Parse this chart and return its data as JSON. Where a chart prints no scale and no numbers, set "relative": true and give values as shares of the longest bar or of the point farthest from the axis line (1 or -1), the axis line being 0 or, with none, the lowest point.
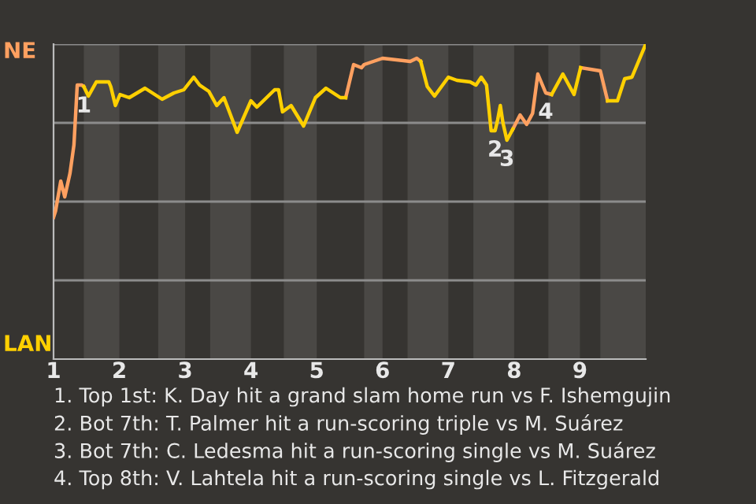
{
  "chart_data": {
    "type": "line",
    "relative": true,
    "xlim": [
      1,
      10
    ],
    "xticks": [
      1,
      2,
      3,
      4,
      5,
      6,
      7,
      8,
      9
    ],
    "grid": "y",
    "series": [
      {
        "color": "#ffa060",
        "x": [
          1.0,
          1.03,
          1.11,
          1.17,
          1.25,
          1.31,
          1.36,
          1.43,
          1.46,
          3.3,
          5.44,
          5.56,
          5.68,
          5.72,
          6.0,
          6.42,
          6.52,
          6.58,
          7.3,
          7.98,
          8.09,
          8.19,
          8.28,
          8.36,
          8.48,
          8.57,
          8.82,
          9.01,
          9.31,
          9.42
        ],
        "values": [
          0.45,
          0.47,
          0.565,
          0.515,
          0.59,
          0.68,
          0.87,
          0.87,
          0.865,
          null,
          0.83,
          0.935,
          0.925,
          0.935,
          0.955,
          0.945,
          0.955,
          0.945,
          null,
          0.73,
          0.775,
          0.745,
          0.78,
          0.905,
          0.845,
          0.84,
          null,
          0.925,
          0.915,
          0.82
        ]
      },
      {
        "color": "#ffd000",
        "x": [
          1.46,
          1.53,
          1.65,
          1.84,
          1.87,
          1.94,
          2.01,
          2.15,
          2.39,
          2.65,
          2.83,
          2.98,
          3.13,
          3.22,
          3.36,
          3.48,
          3.59,
          3.79,
          4.0,
          4.09,
          4.36,
          4.42,
          4.48,
          4.61,
          4.8,
          4.98,
          5.14,
          5.36,
          5.44,
          6.0,
          6.58,
          6.68,
          6.79,
          7.0,
          7.13,
          7.33,
          7.42,
          7.5,
          7.58,
          7.65,
          7.71,
          7.75,
          7.79,
          7.83,
          7.89,
          7.98,
          8.27,
          8.57,
          8.74,
          8.91,
          9.01,
          9.22,
          9.42,
          9.57,
          9.68,
          9.79,
          9.91,
          10.0
        ],
        "values": [
          0.865,
          0.835,
          0.88,
          0.88,
          0.865,
          0.805,
          0.84,
          0.83,
          0.86,
          0.825,
          0.845,
          0.855,
          0.895,
          0.87,
          0.85,
          0.805,
          0.83,
          0.72,
          0.82,
          0.8,
          0.855,
          0.855,
          0.785,
          0.805,
          0.74,
          0.83,
          0.86,
          0.83,
          0.83,
          null,
          0.945,
          0.865,
          0.835,
          0.895,
          0.885,
          0.88,
          0.87,
          0.895,
          0.87,
          0.725,
          0.725,
          0.76,
          0.805,
          0.75,
          0.695,
          0.73,
          null,
          0.84,
          0.905,
          0.84,
          0.925,
          null,
          0.82,
          0.82,
          0.89,
          0.895,
          0.955,
          1.0
        ]
      }
    ],
    "bands": [
      {
        "axis": "x",
        "from": 1.46,
        "to": 2,
        "color": "#4a4845"
      },
      {
        "axis": "x",
        "from": 2.59,
        "to": 3,
        "color": "#4a4845"
      },
      {
        "axis": "x",
        "from": 3.38,
        "to": 4,
        "color": "#4a4845"
      },
      {
        "axis": "x",
        "from": 4.5,
        "to": 5,
        "color": "#4a4845"
      },
      {
        "axis": "x",
        "from": 5.72,
        "to": 6,
        "color": "#4a4845"
      },
      {
        "axis": "x",
        "from": 6.38,
        "to": 7,
        "color": "#4a4845"
      },
      {
        "axis": "x",
        "from": 7.38,
        "to": 8,
        "color": "#4a4845"
      },
      {
        "axis": "x",
        "from": 8.52,
        "to": 9,
        "color": "#4a4845"
      },
      {
        "axis": "x",
        "from": 9.31,
        "to": 10,
        "color": "#4a4845"
      }
    ],
    "annotations": [
      "NE",
      "LAN",
      {
        "text": "1",
        "x": 1.46,
        "y": 0.865
      },
      {
        "text": "2",
        "x": 7.71,
        "y": 0.725
      },
      {
        "text": "3",
        "x": 7.89,
        "y": 0.695
      },
      {
        "text": "4",
        "x": 8.48,
        "y": 0.845
      },
      "1. Top 1st: K. Day hit a grand slam home run vs F. Ishemgujin",
      "2. Bot 7th: T. Palmer hit a run-scoring triple vs M. Suárez",
      "3. Bot 7th: C. Ledesma hit a run-scoring single vs M. Suárez",
      "4. Top 8th: V. Lahtela hit a run-scoring single vs L. Fitzgerald"
    ]
  }
}
